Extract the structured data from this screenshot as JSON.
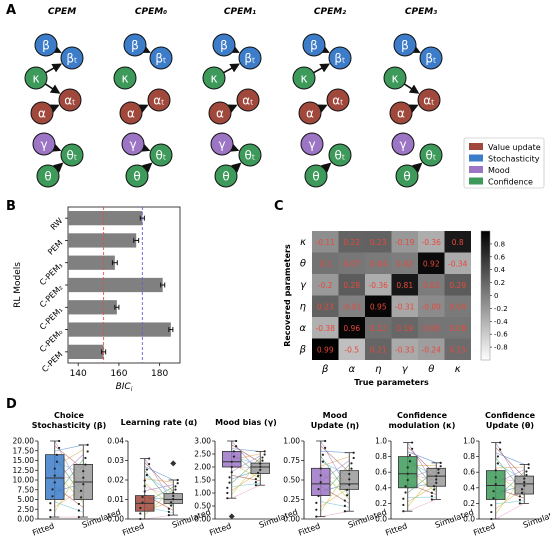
{
  "panels": {
    "A": {
      "letter": "A",
      "models": [
        {
          "name": "CPEM",
          "edges": [
            "beta",
            "kappa-beta",
            "alpha",
            "kappa-alpha",
            "gamma",
            "theta"
          ]
        },
        {
          "name": "CPEM₀",
          "edges": [
            "beta",
            "alpha",
            "gamma",
            "theta"
          ]
        },
        {
          "name": "CPEM₁",
          "edges": [
            "beta",
            "kappa-beta",
            "alpha",
            "gamma",
            "theta"
          ]
        },
        {
          "name": "CPEM₂",
          "edges": [
            "beta",
            "kappa-beta",
            "alpha",
            "theta"
          ]
        },
        {
          "name": "CPEM₃",
          "edges": [
            "beta",
            "alpha",
            "kappa-alpha",
            "theta"
          ]
        }
      ],
      "nodes": {
        "beta": "β",
        "beta_t": "βₜ",
        "kappa": "κ",
        "alpha": "α",
        "alpha_t": "αₜ",
        "gamma": "γ",
        "theta_t": "θₜ",
        "theta": "θ"
      },
      "legend": [
        {
          "label": "Value update",
          "color": "#a0483c"
        },
        {
          "label": "Stochasticity",
          "color": "#3d7cc9"
        },
        {
          "label": "Mood",
          "color": "#9c75c4"
        },
        {
          "label": "Confidence",
          "color": "#3d9a5a"
        }
      ],
      "node_colors": {
        "blue": "#3d7cc9",
        "green": "#3d9a5a",
        "red": "#a0483c",
        "purple": "#9c75c4"
      }
    },
    "B": {
      "letter": "B",
      "chart_data": {
        "type": "bar",
        "orientation": "horizontal",
        "ylabel": "RL Models",
        "xlabel": "BICi",
        "categories": [
          "RW",
          "PEM",
          "C-PEM₃",
          "C-PEM₂",
          "C-PEM₁",
          "C-PEM₀",
          "C-PEM"
        ],
        "values": [
          171.5,
          168.5,
          158,
          181.5,
          159,
          185.5,
          152.5
        ],
        "errors": [
          1,
          1.2,
          1.2,
          1,
          1,
          1,
          1
        ],
        "xlim": [
          135,
          190
        ],
        "xticks": [
          140,
          160,
          180
        ],
        "ref_lines": [
          {
            "value": 152.5,
            "color": "#e05050"
          },
          {
            "value": 171.5,
            "color": "#6060d0"
          }
        ],
        "bar_color": "#808080"
      }
    },
    "C": {
      "letter": "C",
      "chart_data": {
        "type": "heatmap",
        "xlabel": "True parameters",
        "ylabel": "Recovered parameters",
        "x_labels": [
          "β",
          "α",
          "η",
          "γ",
          "θ",
          "κ"
        ],
        "y_labels": [
          "κ",
          "θ",
          "γ",
          "η",
          "α",
          "β"
        ],
        "values": [
          [
            "-0.11",
            "0.22",
            "0.23",
            "-0.19",
            "-0.36",
            "0.8"
          ],
          [
            "0.1",
            "0.07",
            "0.04",
            "0.02",
            "0.92",
            "-0.34"
          ],
          [
            "-0.2",
            "0.28",
            "-0.36",
            "0.81",
            "0.03",
            "0.29"
          ],
          [
            "0.23",
            "-0.01",
            "0.95",
            "-0.31",
            "-0.09",
            "0.04"
          ],
          [
            "-0.38",
            "0.96",
            "0.12",
            "0.19",
            "0.08",
            "0.08"
          ],
          [
            "0.99",
            "-0.5",
            "0.21",
            "-0.33",
            "-0.24",
            "0.15"
          ]
        ],
        "colorbar_ticks": [
          "0.8",
          "0.6",
          "0.4",
          "0.2",
          "0",
          "-0.2",
          "-0.4",
          "-0.6",
          "-0.8"
        ],
        "vlim": [
          -1,
          1
        ],
        "text_color": "#e8483c"
      }
    },
    "D": {
      "letter": "D",
      "xcat": [
        "Fitted",
        "Simulated"
      ],
      "chart_data": [
        {
          "type": "box",
          "title": [
            "Choice",
            "Stochasticity (β)"
          ],
          "ylim": [
            0,
            20
          ],
          "yticks": [
            "0.00",
            "2.50",
            "5.00",
            "7.50",
            "10.00",
            "12.50",
            "15.00",
            "17.50",
            "20.00"
          ],
          "color": "#3d7cc9",
          "fitted": {
            "q1": 5,
            "median": 10.5,
            "q3": 16.5,
            "wlo": 0.5,
            "whi": 20
          },
          "simulated": {
            "q1": 5,
            "median": 9.5,
            "q3": 14,
            "wlo": 0.5,
            "whi": 19
          }
        },
        {
          "type": "box",
          "title": [
            "Learning rate (α)"
          ],
          "ylim": [
            0,
            0.04
          ],
          "yticks": [
            "0.00",
            "0.01",
            "0.02",
            "0.03",
            "0.04"
          ],
          "color": "#a0483c",
          "fitted": {
            "q1": 0.004,
            "median": 0.008,
            "q3": 0.012,
            "wlo": 0.0,
            "whi": 0.031
          },
          "simulated": {
            "q1": 0.008,
            "median": 0.01,
            "q3": 0.013,
            "wlo": 0.002,
            "whi": 0.02,
            "outlier": 0.0285
          }
        },
        {
          "type": "box",
          "title": [
            "Mood bias (γ)"
          ],
          "ylim": [
            0,
            3
          ],
          "yticks": [
            "0.00",
            "0.50",
            "1.00",
            "1.50",
            "2.00",
            "2.50",
            "3.00"
          ],
          "color": "#9c75c4",
          "fitted": {
            "q1": 2.0,
            "median": 2.2,
            "q3": 2.6,
            "wlo": 0.8,
            "whi": 3.0,
            "outlier": 0.1
          },
          "simulated": {
            "q1": 1.75,
            "median": 2.0,
            "q3": 2.15,
            "wlo": 1.3,
            "whi": 2.6
          }
        },
        {
          "type": "box",
          "title": [
            "Mood",
            "Update (η)"
          ],
          "ylim": [
            0,
            1
          ],
          "yticks": [
            "0.00",
            "0.25",
            "0.50",
            "0.75",
            "1.00"
          ],
          "color": "#9c75c4",
          "fitted": {
            "q1": 0.3,
            "median": 0.45,
            "q3": 0.65,
            "wlo": 0.03,
            "whi": 1.0
          },
          "simulated": {
            "q1": 0.38,
            "median": 0.45,
            "q3": 0.62,
            "wlo": 0.1,
            "whi": 0.85
          }
        },
        {
          "type": "box",
          "title": [
            "Confidence",
            "modulation (κ)"
          ],
          "ylim": [
            0,
            1
          ],
          "yticks": [
            "0.0",
            "0.2",
            "0.4",
            "0.6",
            "0.8",
            "1.0"
          ],
          "color": "#3d9a5a",
          "fitted": {
            "q1": 0.4,
            "median": 0.58,
            "q3": 0.8,
            "wlo": 0.1,
            "whi": 0.98
          },
          "simulated": {
            "q1": 0.42,
            "median": 0.55,
            "q3": 0.65,
            "wlo": 0.25,
            "whi": 0.72
          }
        },
        {
          "type": "box",
          "title": [
            "Confidence",
            "Update (θ)"
          ],
          "ylim": [
            0,
            1
          ],
          "yticks": [
            "0.0",
            "0.2",
            "0.4",
            "0.6",
            "0.8",
            "1.0"
          ],
          "color": "#3d9a5a",
          "fitted": {
            "q1": 0.25,
            "median": 0.43,
            "q3": 0.62,
            "wlo": 0.0,
            "whi": 0.98
          },
          "simulated": {
            "q1": 0.32,
            "median": 0.45,
            "q3": 0.55,
            "wlo": 0.2,
            "whi": 0.7
          }
        }
      ]
    }
  }
}
